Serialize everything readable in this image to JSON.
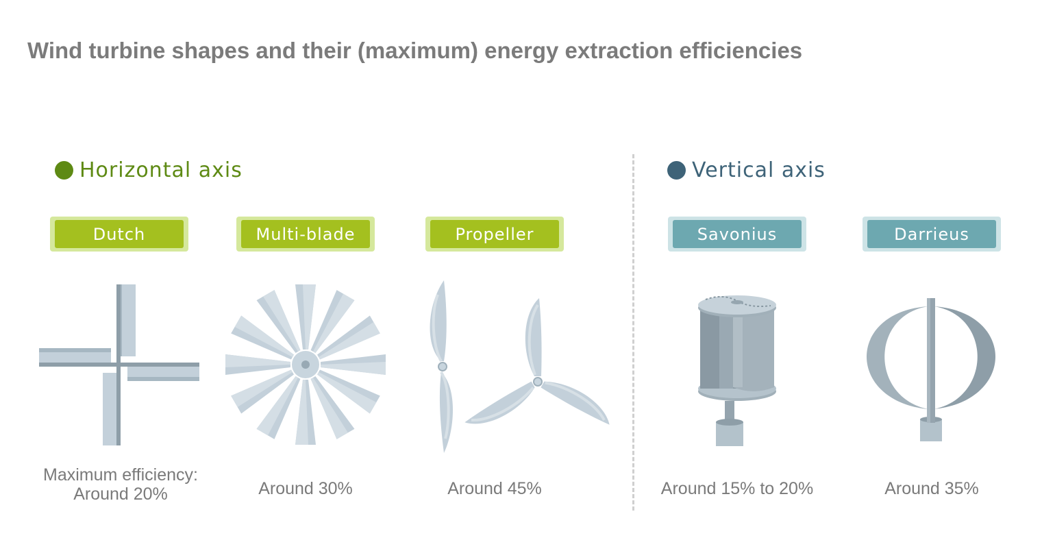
{
  "title": "Wind turbine shapes and their (maximum) energy extraction efficiencies",
  "sections": {
    "horizontal": {
      "label": "Horizontal axis",
      "color": "#5e8a14"
    },
    "vertical": {
      "label": "Vertical axis",
      "color": "#3e6378"
    }
  },
  "label_colors": {
    "horizontal": {
      "outer": "#d5e89c",
      "inner": "#a4c01f"
    },
    "vertical": {
      "outer": "#cde3e6",
      "inner": "#6da8b0"
    }
  },
  "turbines": [
    {
      "name": "Dutch",
      "axis": "horizontal",
      "caption_lines": [
        "Maximum efficiency:",
        "Around 20%"
      ]
    },
    {
      "name": "Multi-blade",
      "axis": "horizontal",
      "caption_lines": [
        "Around 30%"
      ]
    },
    {
      "name": "Propeller",
      "axis": "horizontal",
      "caption_lines": [
        "Around 45%"
      ]
    },
    {
      "name": "Savonius",
      "axis": "vertical",
      "caption_lines": [
        "Around 15% to 20%"
      ]
    },
    {
      "name": "Darrieus",
      "axis": "vertical",
      "caption_lines": [
        "Around 35%"
      ]
    }
  ]
}
